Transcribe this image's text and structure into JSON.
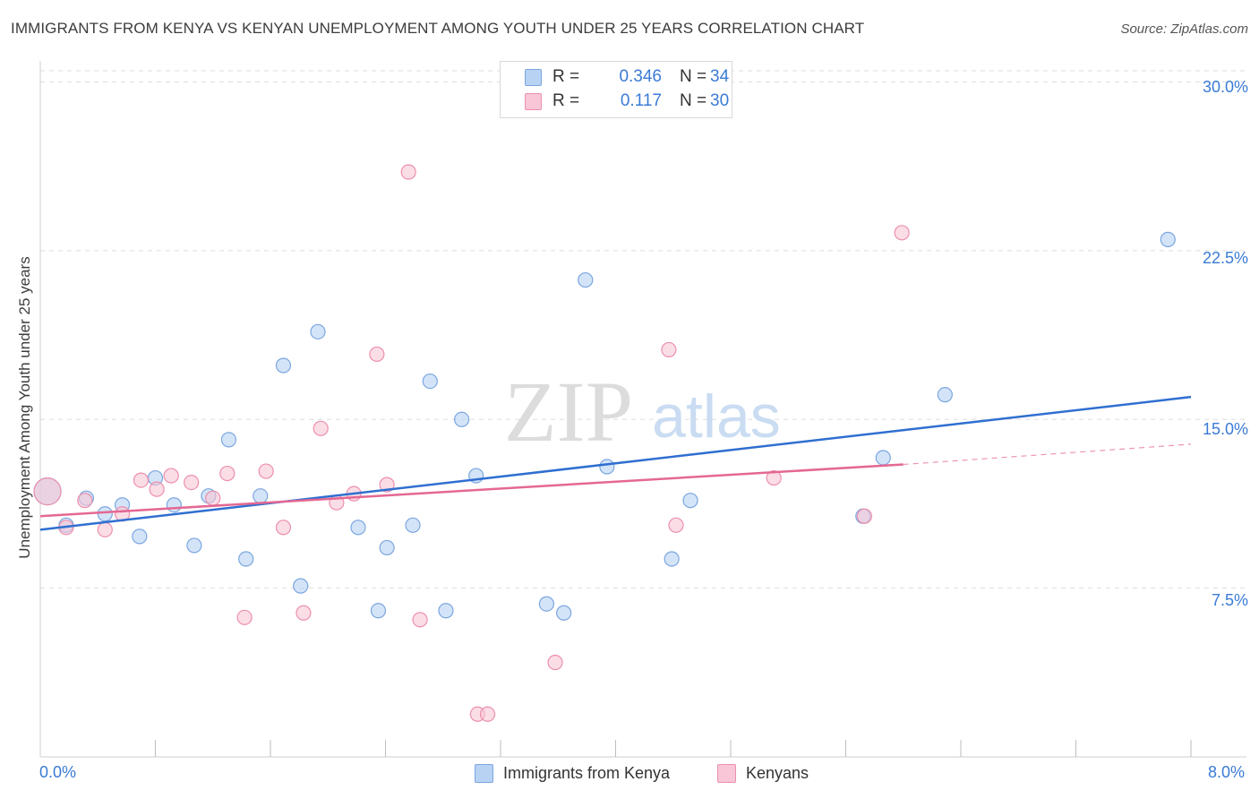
{
  "title": "IMMIGRANTS FROM KENYA VS KENYAN UNEMPLOYMENT AMONG YOUTH UNDER 25 YEARS CORRELATION CHART",
  "source": "Source: ZipAtlas.com",
  "watermark": {
    "zip": "ZIP",
    "atlas": "atlas"
  },
  "legend": {
    "r_label": "R =",
    "n_label": "N =",
    "rows": [
      {
        "r": "0.346",
        "n": "34",
        "color": "#a9c8f0"
      },
      {
        "r": "0.117",
        "n": "30",
        "color": "#f6b8cc"
      }
    ]
  },
  "bottom_legend": [
    "Immigrants from Kenya",
    "Kenyans"
  ],
  "colors": {
    "blue_fill": "#b8d2f3",
    "blue_stroke": "#7aa6e0",
    "blue_line": "#2f6fd0",
    "pink_fill": "#f8c6d6",
    "pink_stroke": "#ec8fad",
    "pink_line": "#e46893",
    "axis_text": "#3a7bd5",
    "grid": "#dddddd"
  },
  "chart_data": {
    "type": "scatter",
    "title": "IMMIGRANTS FROM KENYA VS KENYAN UNEMPLOYMENT AMONG YOUTH UNDER 25 YEARS CORRELATION CHART",
    "xlabel": "",
    "ylabel": "Unemployment Among Youth under 25 years",
    "xlim": [
      0,
      8
    ],
    "ylim": [
      0,
      30.5
    ],
    "x_tick_labels": [
      "0.0%",
      "8.0%"
    ],
    "y_ticks": [
      7.5,
      15.0,
      22.5,
      30.0
    ],
    "y_tick_labels": [
      "7.5%",
      "15.0%",
      "22.5%",
      "30.0%"
    ],
    "series": [
      {
        "name": "Immigrants from Kenya",
        "r": 0.346,
        "n": 34,
        "points": [
          {
            "x": 0.05,
            "y": 11.8,
            "size": "large"
          },
          {
            "x": 0.18,
            "y": 10.3
          },
          {
            "x": 0.32,
            "y": 11.5
          },
          {
            "x": 0.45,
            "y": 10.8
          },
          {
            "x": 0.57,
            "y": 11.2
          },
          {
            "x": 0.69,
            "y": 9.8
          },
          {
            "x": 0.8,
            "y": 12.4
          },
          {
            "x": 0.93,
            "y": 11.2
          },
          {
            "x": 1.07,
            "y": 9.4
          },
          {
            "x": 1.17,
            "y": 11.6
          },
          {
            "x": 1.31,
            "y": 14.1
          },
          {
            "x": 1.43,
            "y": 8.8
          },
          {
            "x": 1.53,
            "y": 11.6
          },
          {
            "x": 1.69,
            "y": 17.4
          },
          {
            "x": 1.81,
            "y": 7.6
          },
          {
            "x": 1.93,
            "y": 18.9
          },
          {
            "x": 2.21,
            "y": 10.2
          },
          {
            "x": 2.35,
            "y": 6.5
          },
          {
            "x": 2.41,
            "y": 9.3
          },
          {
            "x": 2.59,
            "y": 10.3
          },
          {
            "x": 2.71,
            "y": 16.7
          },
          {
            "x": 2.82,
            "y": 6.5
          },
          {
            "x": 2.93,
            "y": 15.0
          },
          {
            "x": 3.03,
            "y": 12.5
          },
          {
            "x": 3.52,
            "y": 6.8
          },
          {
            "x": 3.64,
            "y": 6.4
          },
          {
            "x": 3.79,
            "y": 21.2
          },
          {
            "x": 3.94,
            "y": 12.9
          },
          {
            "x": 4.39,
            "y": 8.8
          },
          {
            "x": 4.52,
            "y": 11.4
          },
          {
            "x": 5.72,
            "y": 10.7
          },
          {
            "x": 5.86,
            "y": 13.3
          },
          {
            "x": 6.29,
            "y": 16.1
          },
          {
            "x": 7.84,
            "y": 23.0
          }
        ],
        "trend": {
          "x0": 0.0,
          "y0": 10.1,
          "x1": 8.0,
          "y1": 16.0
        }
      },
      {
        "name": "Kenyans",
        "r": 0.117,
        "n": 30,
        "points": [
          {
            "x": 0.05,
            "y": 11.8,
            "size": "large"
          },
          {
            "x": 0.18,
            "y": 10.2
          },
          {
            "x": 0.31,
            "y": 11.4
          },
          {
            "x": 0.45,
            "y": 10.1
          },
          {
            "x": 0.57,
            "y": 10.8
          },
          {
            "x": 0.7,
            "y": 12.3
          },
          {
            "x": 0.81,
            "y": 11.9
          },
          {
            "x": 0.91,
            "y": 12.5
          },
          {
            "x": 1.05,
            "y": 12.2
          },
          {
            "x": 1.2,
            "y": 11.5
          },
          {
            "x": 1.3,
            "y": 12.6
          },
          {
            "x": 1.42,
            "y": 6.2
          },
          {
            "x": 1.57,
            "y": 12.7
          },
          {
            "x": 1.69,
            "y": 10.2
          },
          {
            "x": 1.83,
            "y": 6.4
          },
          {
            "x": 1.95,
            "y": 14.6
          },
          {
            "x": 2.06,
            "y": 11.3
          },
          {
            "x": 2.18,
            "y": 11.7
          },
          {
            "x": 2.34,
            "y": 17.9
          },
          {
            "x": 2.41,
            "y": 12.1
          },
          {
            "x": 2.56,
            "y": 26.0
          },
          {
            "x": 2.64,
            "y": 6.1
          },
          {
            "x": 3.04,
            "y": 1.9
          },
          {
            "x": 3.11,
            "y": 1.9
          },
          {
            "x": 3.58,
            "y": 4.2
          },
          {
            "x": 4.37,
            "y": 18.1
          },
          {
            "x": 4.42,
            "y": 10.3
          },
          {
            "x": 5.1,
            "y": 12.4
          },
          {
            "x": 5.73,
            "y": 10.7
          },
          {
            "x": 5.99,
            "y": 23.3
          }
        ],
        "trend": {
          "x0": 0.0,
          "y0": 10.7,
          "x1": 6.0,
          "y1": 13.0
        },
        "trend_dashed_to": {
          "x": 8.0,
          "y": 13.9
        }
      }
    ]
  }
}
